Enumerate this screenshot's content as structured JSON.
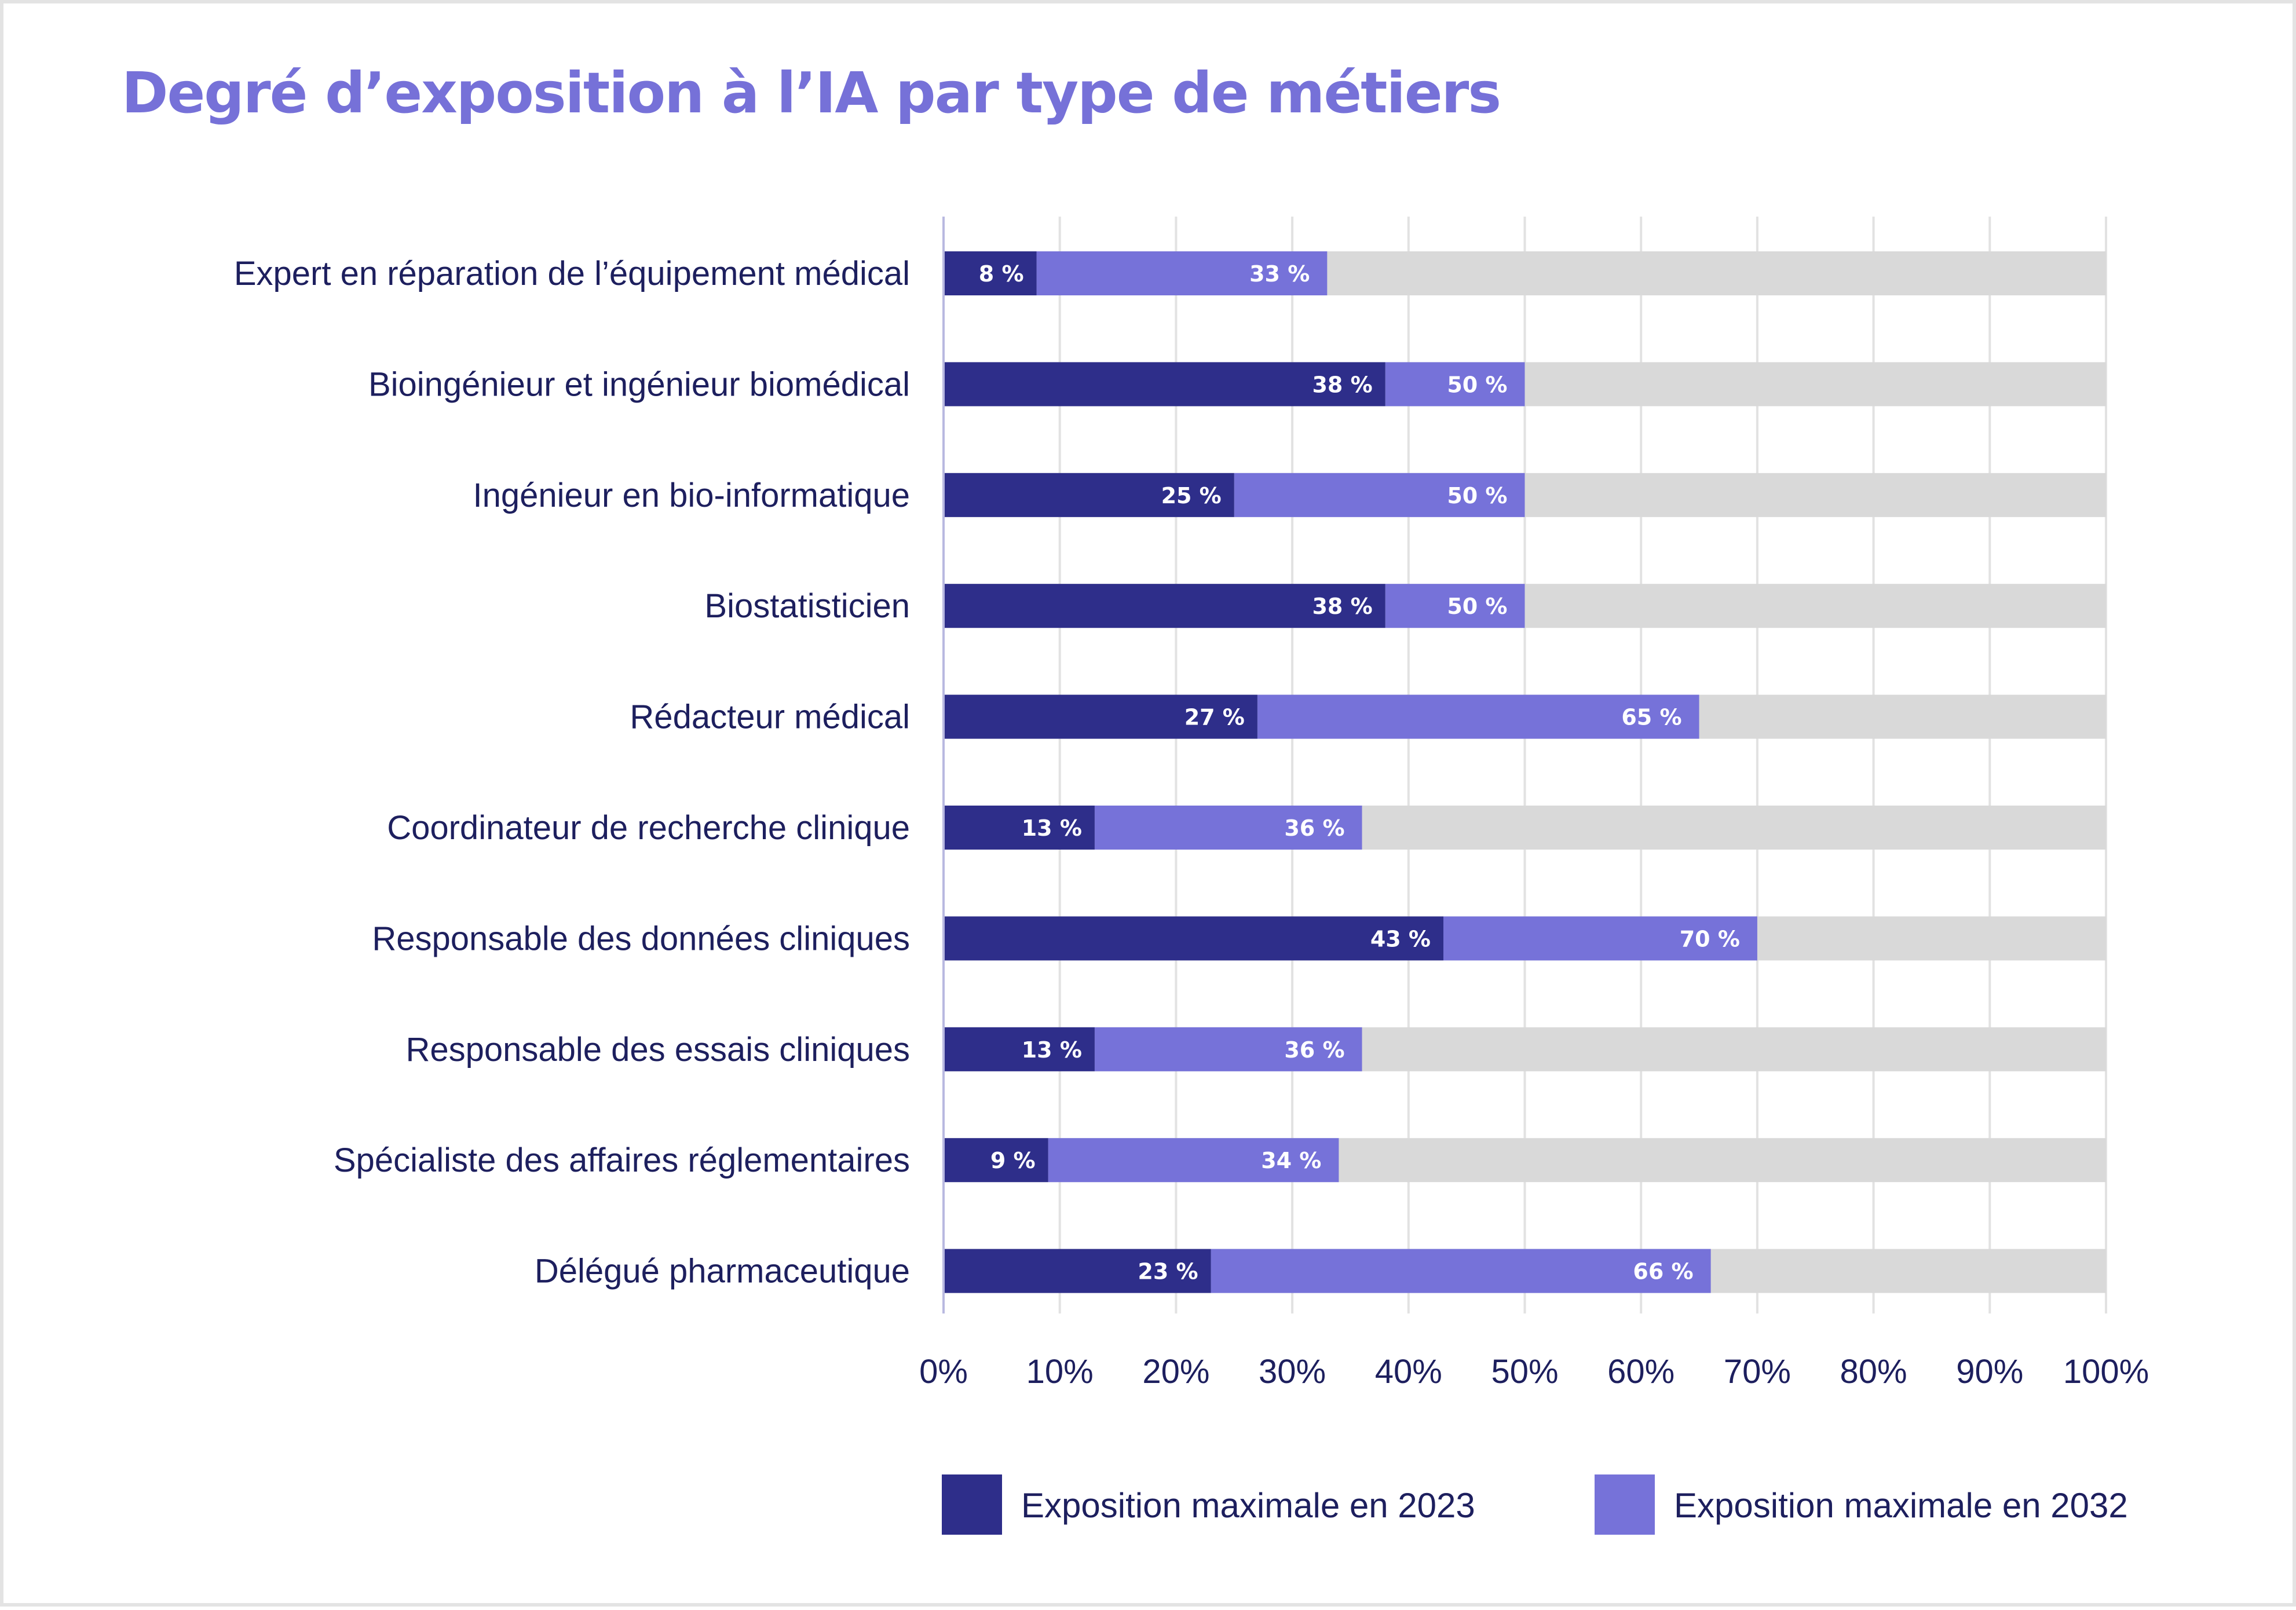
{
  "chart_data": {
    "type": "bar",
    "orientation": "horizontal",
    "title": "Degré d’exposition à l’IA par type de métiers",
    "categories": [
      "Expert en réparation de l’équipement médical",
      "Bioingénieur et ingénieur biomédical",
      "Ingénieur en bio-informatique",
      "Biostatisticien",
      "Rédacteur médical",
      "Coordinateur de recherche clinique",
      "Responsable des données cliniques",
      "Responsable des essais cliniques",
      "Spécialiste des affaires réglementaires",
      "Délégué pharmaceutique"
    ],
    "series": [
      {
        "name": "Exposition maximale en 2023",
        "color": "#2e2e8a",
        "values": [
          8,
          38,
          25,
          38,
          27,
          13,
          43,
          13,
          9,
          23
        ],
        "labels": [
          "8 %",
          "38 %",
          "25 %",
          "38 %",
          "27 %",
          "13 %",
          "43 %",
          "13 %",
          "9 %",
          "23 %"
        ]
      },
      {
        "name": "Exposition maximale en 2032",
        "color": "#7672d9",
        "values": [
          33,
          50,
          50,
          50,
          65,
          36,
          70,
          36,
          34,
          66
        ],
        "labels": [
          "33 %",
          "50 %",
          "50 %",
          "50 %",
          "65 %",
          "36 %",
          "70 %",
          "36 %",
          "34 %",
          "66 %"
        ]
      }
    ],
    "background_series": {
      "value": 100,
      "color": "#d9d9d9"
    },
    "xlim": [
      0,
      100
    ],
    "x_ticks": [
      0,
      10,
      20,
      30,
      40,
      50,
      60,
      70,
      80,
      90,
      100
    ],
    "x_tick_labels": [
      "0%",
      "10%",
      "20%",
      "30%",
      "40%",
      "50%",
      "60%",
      "70%",
      "80%",
      "90%",
      "100%"
    ],
    "grid": true,
    "grid_color": "#e2e2e2",
    "legend_position": "bottom-right",
    "title_color": "#7671d8",
    "text_color": "#1d1f5e"
  }
}
